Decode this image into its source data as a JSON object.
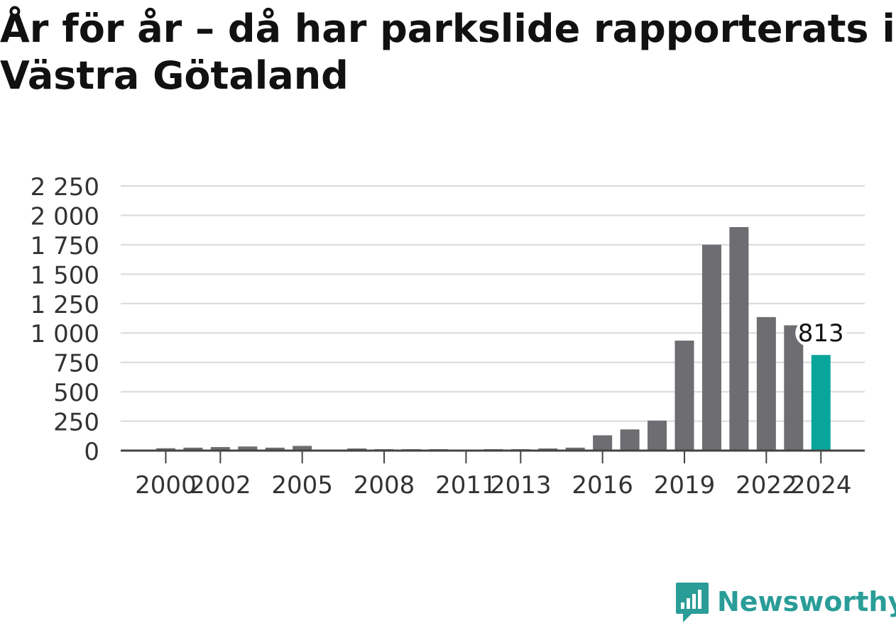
{
  "title": "År för år – då har parkslide rapporterats i Västra Götaland",
  "brand": {
    "name": "Newsworthy",
    "icon": "newsworthy-logo-icon"
  },
  "colors": {
    "bar": "#6d6d72",
    "highlight": "#0aa59a",
    "grid": "#d9d9d9",
    "axis": "#444444",
    "text": "#333333",
    "brand": "#2a9d98"
  },
  "chart_data": {
    "type": "bar",
    "title": "År för år – då har parkslide rapporterats i Västra Götaland",
    "xlabel": "",
    "ylabel": "",
    "categories": [
      "1999",
      "2000",
      "2001",
      "2002",
      "2003",
      "2004",
      "2005",
      "2006",
      "2007",
      "2008",
      "2009",
      "2010",
      "2011",
      "2012",
      "2013",
      "2014",
      "2015",
      "2016",
      "2017",
      "2018",
      "2019",
      "2020",
      "2021",
      "2022",
      "2023",
      "2024"
    ],
    "values": [
      0,
      20,
      25,
      30,
      35,
      25,
      40,
      3,
      18,
      12,
      12,
      12,
      8,
      12,
      12,
      18,
      25,
      130,
      180,
      255,
      935,
      1750,
      1900,
      1135,
      1065,
      813
    ],
    "highlight_index": 25,
    "data_labels": [
      {
        "category": "2024",
        "text": "813"
      }
    ],
    "xticks": [
      "2000",
      "2002",
      "2005",
      "2008",
      "2011",
      "2013",
      "2016",
      "2019",
      "2022",
      "2024"
    ],
    "yticks": [
      0,
      250,
      500,
      750,
      1000,
      1250,
      1500,
      1750,
      2000,
      2250
    ],
    "ytick_labels": [
      "0",
      "250",
      "500",
      "750",
      "1 000",
      "1 250",
      "1 500",
      "1 750",
      "2 000",
      "2 250"
    ],
    "ylim": [
      0,
      2250
    ],
    "grid": true,
    "legend": "none"
  }
}
